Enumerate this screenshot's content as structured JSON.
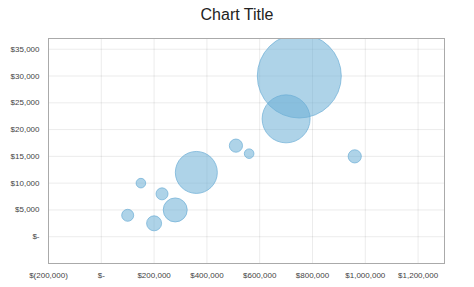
{
  "chart_data": {
    "type": "bubble",
    "title": "Chart Title",
    "x": [
      100000,
      150000,
      200000,
      230000,
      280000,
      360000,
      510000,
      560000,
      700000,
      750000,
      960000
    ],
    "values": [
      4000,
      10000,
      2500,
      8000,
      5000,
      12000,
      17000,
      15500,
      22000,
      30000,
      15000
    ],
    "sizes": [
      200,
      160,
      250,
      200,
      400,
      700,
      220,
      160,
      800,
      1400,
      220
    ],
    "color": "#6baed6",
    "xlim": [
      -200000,
      1300000
    ],
    "xticks": [
      {
        "value": -200000,
        "label": "$(200,000)"
      },
      {
        "value": 0,
        "label": "$-"
      },
      {
        "value": 200000,
        "label": "$200,000"
      },
      {
        "value": 400000,
        "label": "$400,000"
      },
      {
        "value": 600000,
        "label": "$600,000"
      },
      {
        "value": 800000,
        "label": "$800,000"
      },
      {
        "value": 1000000,
        "label": "$1,000,000"
      },
      {
        "value": 1200000,
        "label": "$1,200,000"
      }
    ],
    "ylim": [
      -5000,
      37000
    ],
    "yticks": [
      {
        "value": 0,
        "label": "$-"
      },
      {
        "value": 5000,
        "label": "$5,000"
      },
      {
        "value": 10000,
        "label": "$10,000"
      },
      {
        "value": 15000,
        "label": "$15,000"
      },
      {
        "value": 20000,
        "label": "$20,000"
      },
      {
        "value": 25000,
        "label": "$25,000"
      },
      {
        "value": 30000,
        "label": "$30,000"
      },
      {
        "value": 35000,
        "label": "$35,000"
      }
    ],
    "grid": true
  }
}
